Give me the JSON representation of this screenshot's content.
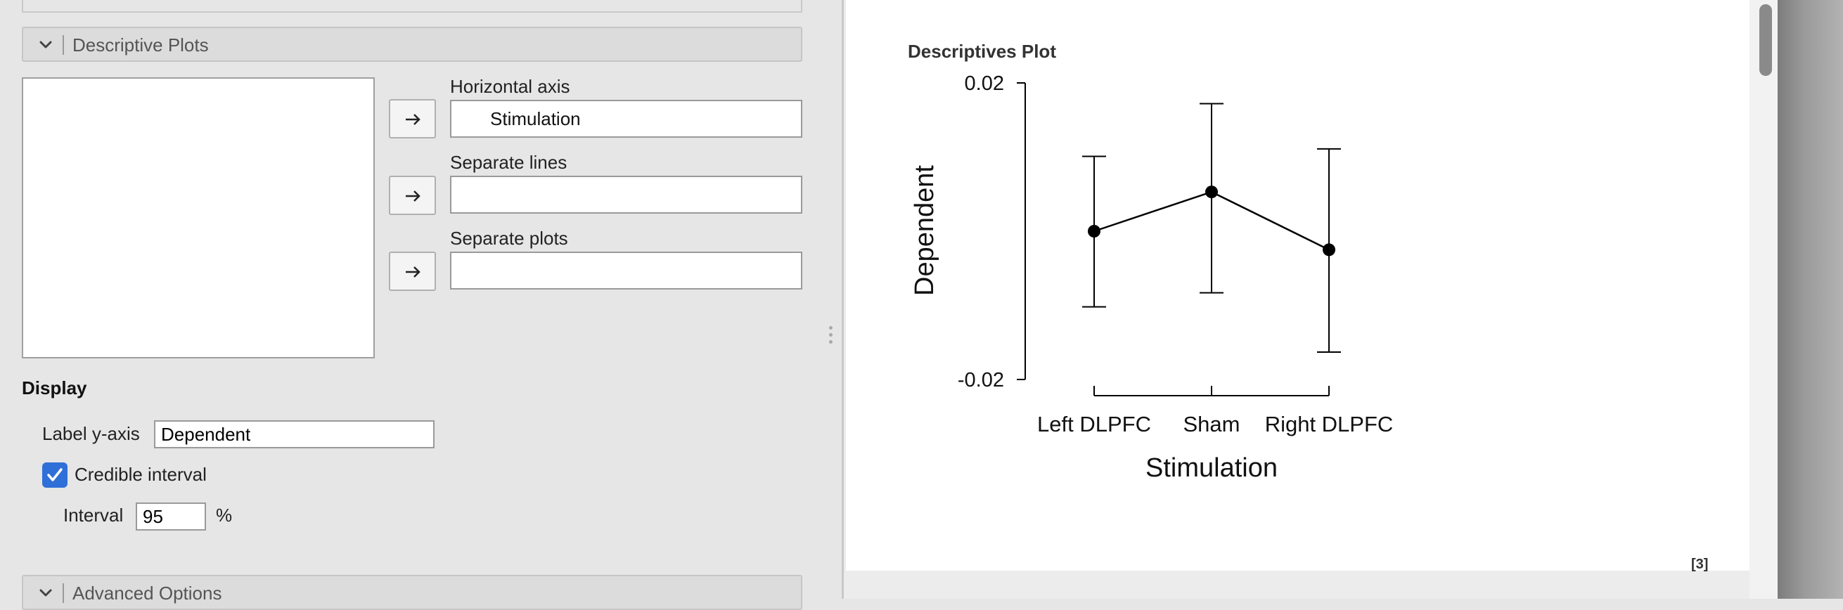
{
  "left_panel": {
    "descriptive_plots": {
      "header_label": "Descriptive Plots",
      "horizontal_axis": {
        "label": "Horizontal axis",
        "items": [
          "Stimulation"
        ]
      },
      "separate_lines": {
        "label": "Separate lines",
        "items": []
      },
      "separate_plots": {
        "label": "Separate plots",
        "items": []
      }
    },
    "display": {
      "title": "Display",
      "label_y_axis": {
        "label": "Label y-axis",
        "value": "Dependent"
      },
      "credible_interval": {
        "label": "Credible interval",
        "checked": true
      },
      "interval": {
        "label": "Interval",
        "value": "95",
        "unit": "%"
      }
    },
    "advanced_options": {
      "header_label": "Advanced Options"
    }
  },
  "output": {
    "plot_title": "Descriptives Plot",
    "reference": "[3]"
  },
  "chart_data": {
    "type": "line",
    "title": "Descriptives Plot",
    "xlabel": "Stimulation",
    "ylabel": "Dependent",
    "categories": [
      "Left DLPFC",
      "Sham",
      "Right DLPFC"
    ],
    "series": [
      {
        "values": [
          0.0,
          0.0053,
          -0.0025
        ],
        "lower": [
          -0.0102,
          -0.0083,
          -0.0163
        ],
        "upper": [
          0.0101,
          0.0172,
          0.0111
        ]
      }
    ],
    "ylim": [
      -0.02,
      0.02
    ],
    "y_ticks": [
      "0.02",
      "-0.02"
    ],
    "grid": false,
    "legend": "none"
  },
  "colors": {
    "checkbox": "#2f6fd8",
    "panel_bg": "#e6e6e6",
    "plot_line": "#000000"
  },
  "icons": {
    "section_toggle": "chevron-down-icon",
    "assign": "arrow-right-icon",
    "check": "checkmark-icon"
  }
}
